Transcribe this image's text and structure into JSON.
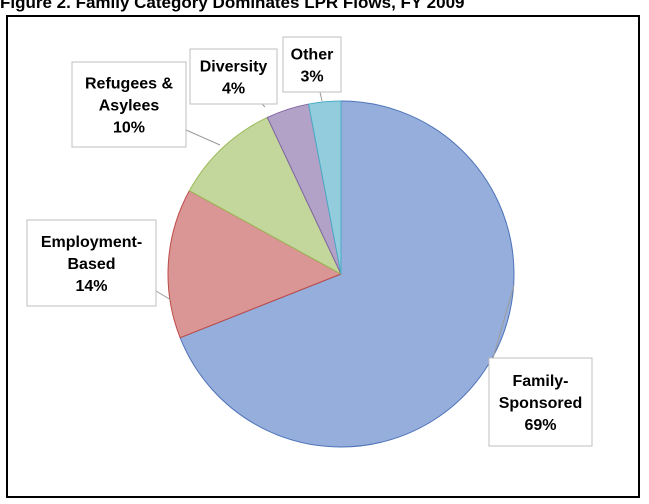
{
  "page": {
    "title": "Figure 2. Family Category Dominates LPR Flows, FY 2009"
  },
  "colors": {
    "family_fill": "#95aedb",
    "family_stroke": "#4f74b9",
    "employment_fill": "#d99694",
    "employment_stroke": "#bd4b48",
    "refugee_fill": "#c3d69b",
    "refugee_stroke": "#9bbb59",
    "diversity_fill": "#b3a2c7",
    "diversity_stroke": "#8064a2",
    "other_fill": "#93cddd",
    "other_stroke": "#4bacc6",
    "leader": "#9b9b9b"
  },
  "chart_data": {
    "type": "pie",
    "start_angle": "12 o'clock",
    "direction": "clockwise",
    "slices": [
      {
        "label_lines": [
          "Family-",
          "Sponsored"
        ],
        "percent_label": "69%",
        "value": 69,
        "fill": "#95aedb",
        "stroke": "#4f74b9"
      },
      {
        "label_lines": [
          "Employment-",
          "Based"
        ],
        "percent_label": "14%",
        "value": 14,
        "fill": "#d99694",
        "stroke": "#bd4b48"
      },
      {
        "label_lines": [
          "Refugees &",
          "Asylees"
        ],
        "percent_label": "10%",
        "value": 10,
        "fill": "#c3d69b",
        "stroke": "#9bbb59"
      },
      {
        "label_lines": [
          "Diversity"
        ],
        "percent_label": "4%",
        "value": 4,
        "fill": "#b3a2c7",
        "stroke": "#8064a2"
      },
      {
        "label_lines": [
          "Other"
        ],
        "percent_label": "3%",
        "value": 3,
        "fill": "#93cddd",
        "stroke": "#4bacc6"
      }
    ]
  }
}
